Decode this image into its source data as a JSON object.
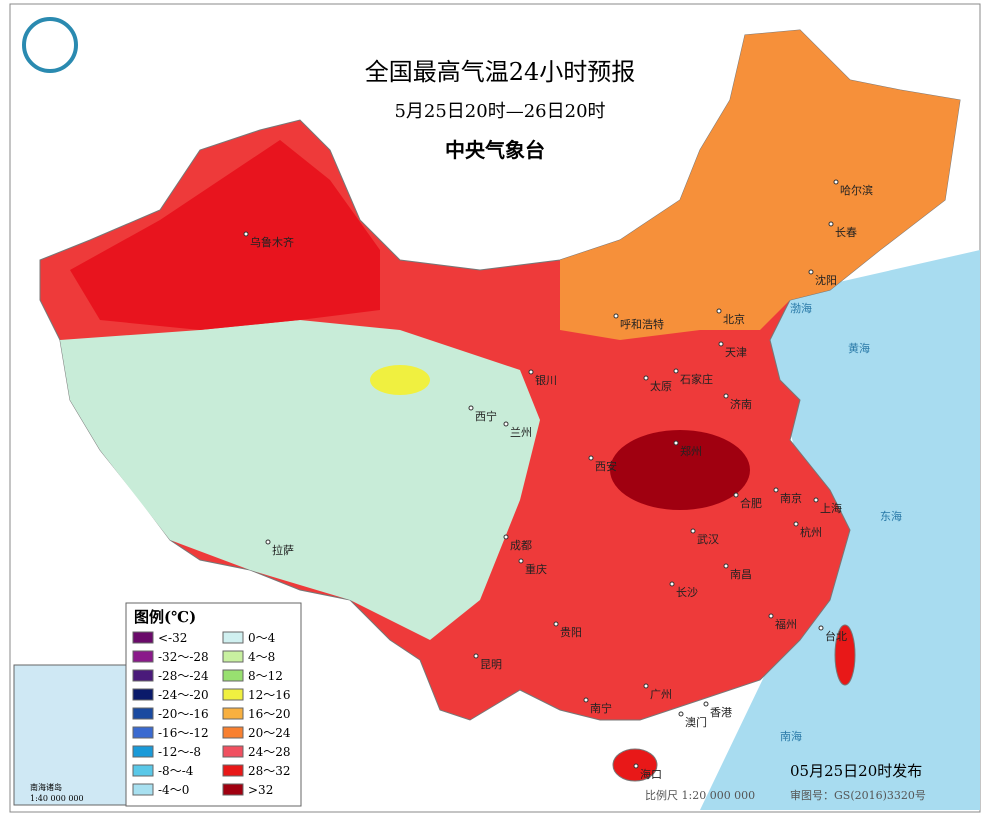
{
  "header": {
    "title": "全国最高气温24小时预报",
    "subtitle": "5月25日20时—26日20时",
    "publisher": "中央气象台"
  },
  "cities": [
    "乌鲁木齐",
    "哈尔滨",
    "长春",
    "沈阳",
    "北京",
    "天津",
    "呼和浩特",
    "石家庄",
    "太原",
    "济南",
    "银川",
    "西宁",
    "兰州",
    "西安",
    "郑州",
    "合肥",
    "南京",
    "上海",
    "杭州",
    "武汉",
    "成都",
    "重庆",
    "拉萨",
    "长沙",
    "南昌",
    "贵阳",
    "昆明",
    "福州",
    "台北",
    "南宁",
    "广州",
    "澳门",
    "香港",
    "海口"
  ],
  "seas": [
    "渤海",
    "黄海",
    "东海",
    "南海"
  ],
  "legend": {
    "title": "图例(℃)",
    "items": [
      {
        "label": "<-32",
        "color": "#6a0a6a"
      },
      {
        "label": "-32～-28",
        "color": "#8a1a8a"
      },
      {
        "label": "-28～-24",
        "color": "#4a1a7a"
      },
      {
        "label": "-24～-20",
        "color": "#0a1a6a"
      },
      {
        "label": "-20～-16",
        "color": "#1a4aa0"
      },
      {
        "label": "-16～-12",
        "color": "#3a6ad0"
      },
      {
        "label": "-12～-8",
        "color": "#1a9ad8"
      },
      {
        "label": "-8～-4",
        "color": "#5ac8e8"
      },
      {
        "label": "-4～0",
        "color": "#a8e0f0"
      },
      {
        "label": "0～4",
        "color": "#d0f0f0"
      },
      {
        "label": "4～8",
        "color": "#c8f0a0"
      },
      {
        "label": "8～12",
        "color": "#98e070"
      },
      {
        "label": "12～16",
        "color": "#f0f040"
      },
      {
        "label": "16～20",
        "color": "#f8b040"
      },
      {
        "label": "20～24",
        "color": "#f88030"
      },
      {
        "label": "24～28",
        "color": "#f05060"
      },
      {
        "label": "28～32",
        "color": "#e81818"
      },
      {
        "label": ">32",
        "color": "#a00010"
      }
    ]
  },
  "inset": {
    "title": "南海诸岛",
    "scale": "1:40 000 000"
  },
  "footer": {
    "release": "05月25日20时发布",
    "scale": "比例尺 1:20 000 000",
    "approval": "审图号：GS(2016)3320号"
  }
}
